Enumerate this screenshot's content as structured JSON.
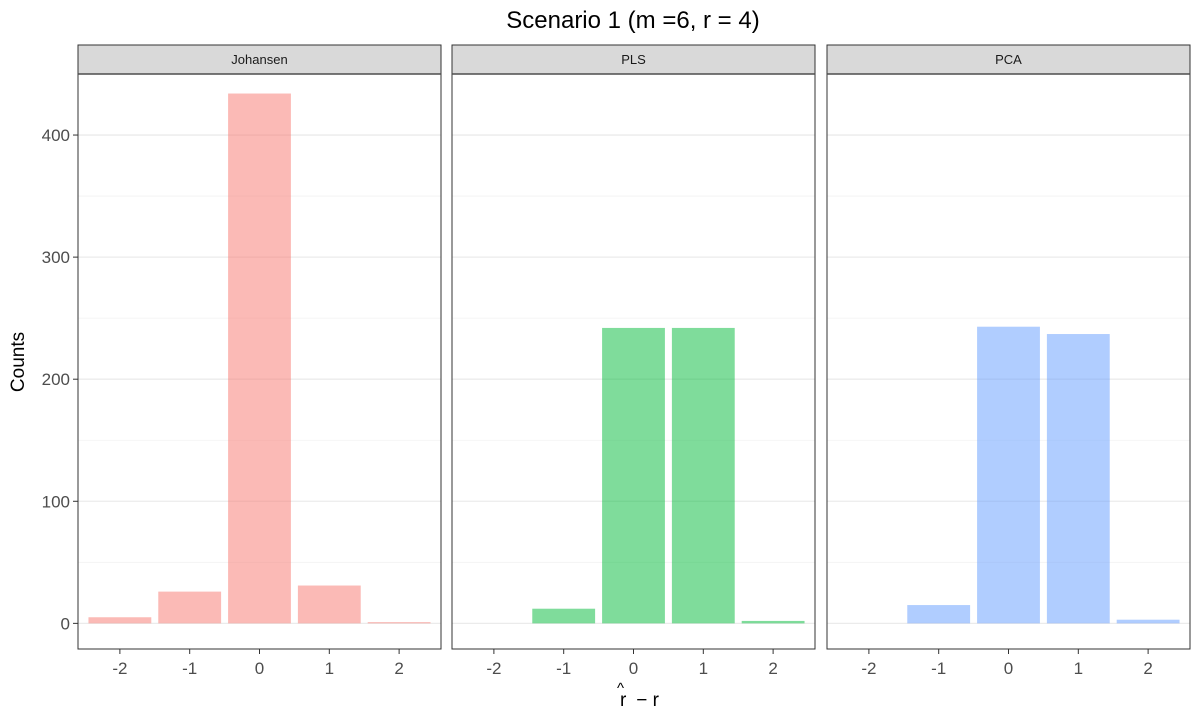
{
  "chart_data": {
    "type": "bar",
    "title": "Scenario 1 (m =6, r = 4)",
    "xlabel_main": "r",
    "xlabel_hat": "^",
    "xlabel_rest": " − r",
    "ylabel": "Counts",
    "ylim": [
      -21,
      450
    ],
    "yticks": [
      0,
      100,
      200,
      300,
      400
    ],
    "categories": [
      "-2",
      "-1",
      "0",
      "1",
      "2"
    ],
    "grid": true,
    "legend": "none",
    "facets": [
      {
        "name": "Johansen",
        "color": "#F8766D",
        "values": [
          5,
          26,
          434,
          31,
          1
        ]
      },
      {
        "name": "PLS",
        "color": "#00BA38",
        "values": [
          0,
          12,
          242,
          242,
          2
        ]
      },
      {
        "name": "PCA",
        "color": "#619CFF",
        "values": [
          0,
          15,
          243,
          237,
          3
        ]
      }
    ]
  }
}
